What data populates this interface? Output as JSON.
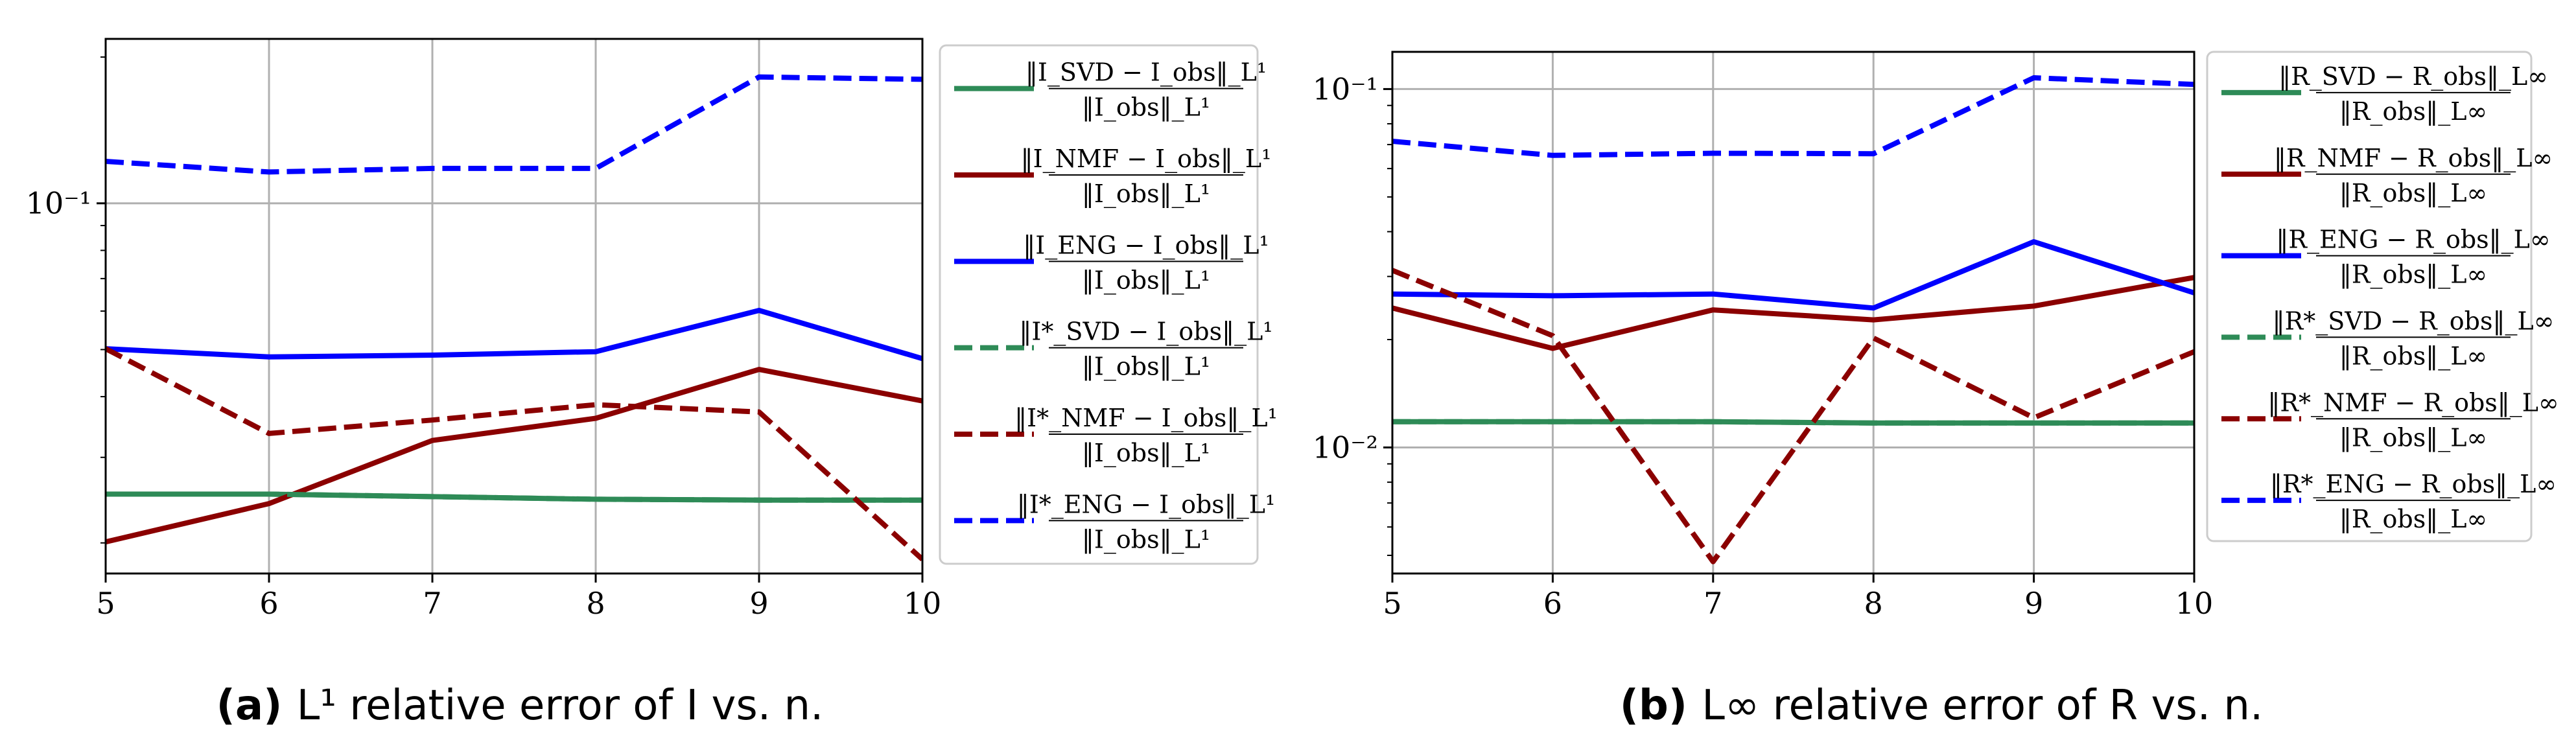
{
  "chart_data": [
    {
      "panel": "a",
      "type": "line",
      "caption": {
        "label": "(a)",
        "text": "L¹ relative error of I vs. n."
      },
      "x": [
        5,
        6,
        7,
        8,
        9,
        10
      ],
      "xticks": [
        "5",
        "6",
        "7",
        "8",
        "9",
        "10"
      ],
      "ytick_label": "10⁻¹",
      "yscale": "log",
      "ylim": [
        0.0173,
        0.218
      ],
      "series": [
        {
          "name": "‖I_SVD − I_obs‖_L¹ / ‖I_obs‖_L¹",
          "num": "‖I_SVD − I_obs‖_L¹",
          "den": "‖I_obs‖_L¹",
          "color": "#2e8b57",
          "dash": "solid",
          "values": [
            0.0252,
            0.0252,
            0.0249,
            0.0246,
            0.0245,
            0.0245
          ]
        },
        {
          "name": "‖I_NMF − I_obs‖_L¹ / ‖I_obs‖_L¹",
          "num": "‖I_NMF − I_obs‖_L¹",
          "den": "‖I_obs‖_L¹",
          "color": "#8b0000",
          "dash": "solid",
          "values": [
            0.0201,
            0.0241,
            0.0325,
            0.0361,
            0.0455,
            0.0392
          ]
        },
        {
          "name": "‖I_ENG − I_obs‖_L¹ / ‖I_obs‖_L¹",
          "num": "‖I_ENG − I_obs‖_L¹",
          "den": "‖I_obs‖_L¹",
          "color": "#0000ff",
          "dash": "solid",
          "values": [
            0.0502,
            0.0483,
            0.0487,
            0.0495,
            0.0602,
            0.0479
          ]
        },
        {
          "name": "‖I*_SVD − I_obs‖_L¹ / ‖I_obs‖_L¹",
          "num": "‖I*_SVD − I_obs‖_L¹",
          "den": "‖I_obs‖_L¹",
          "color": "#2e8b57",
          "dash": "dashed",
          "values": [
            0.0252,
            0.0252,
            0.0249,
            0.0246,
            0.0245,
            0.0245
          ]
        },
        {
          "name": "‖I*_NMF − I_obs‖_L¹ / ‖I_obs‖_L¹",
          "num": "‖I*_NMF − I_obs‖_L¹",
          "den": "‖I_obs‖_L¹",
          "color": "#8b0000",
          "dash": "dashed",
          "values": [
            0.0502,
            0.0336,
            0.0358,
            0.0385,
            0.0372,
            0.0185
          ]
        },
        {
          "name": "‖I*_ENG − I_obs‖_L¹ / ‖I_obs‖_L¹",
          "num": "‖I*_ENG − I_obs‖_L¹",
          "den": "‖I_obs‖_L¹",
          "color": "#0000ff",
          "dash": "dashed",
          "values": [
            0.122,
            0.116,
            0.118,
            0.118,
            0.182,
            0.18
          ]
        }
      ]
    },
    {
      "panel": "b",
      "type": "line",
      "caption": {
        "label": "(b)",
        "text": "L∞ relative error of R vs. n."
      },
      "x": [
        5,
        6,
        7,
        8,
        9,
        10
      ],
      "xticks": [
        "5",
        "6",
        "7",
        "8",
        "9",
        "10"
      ],
      "ytick_labels": [
        "10⁻¹",
        "10⁻²"
      ],
      "yscale": "log",
      "ylim": [
        0.00445,
        0.127
      ],
      "series": [
        {
          "name": "‖R_SVD − R_obs‖_L∞ / ‖R_obs‖_L∞",
          "num": "‖R_SVD − R_obs‖_L∞",
          "den": "‖R_obs‖_L∞",
          "color": "#2e8b57",
          "dash": "solid",
          "values": [
            0.0118,
            0.0118,
            0.0118,
            0.0117,
            0.0117,
            0.0117
          ]
        },
        {
          "name": "‖R_NMF − R_obs‖_L∞ / ‖R_obs‖_L∞",
          "num": "‖R_NMF − R_obs‖_L∞",
          "den": "‖R_obs‖_L∞",
          "color": "#8b0000",
          "dash": "solid",
          "values": [
            0.0245,
            0.0189,
            0.0242,
            0.0227,
            0.0248,
            0.0298
          ]
        },
        {
          "name": "‖R_ENG − R_obs‖_L∞ / ‖R_obs‖_L∞",
          "num": "‖R_ENG − R_obs‖_L∞",
          "den": "‖R_obs‖_L∞",
          "color": "#0000ff",
          "dash": "solid",
          "values": [
            0.0268,
            0.0265,
            0.0268,
            0.0245,
            0.0375,
            0.027
          ]
        },
        {
          "name": "‖R*_SVD − R_obs‖_L∞ / ‖R_obs‖_L∞",
          "num": "‖R*_SVD − R_obs‖_L∞",
          "den": "‖R_obs‖_L∞",
          "color": "#2e8b57",
          "dash": "dashed",
          "values": [
            0.0118,
            0.0118,
            0.0118,
            0.0117,
            0.0117,
            0.0117
          ]
        },
        {
          "name": "‖R*_NMF − R_obs‖_L∞ / ‖R_obs‖_L∞",
          "num": "‖R*_NMF − R_obs‖_L∞",
          "den": "‖R_obs‖_L∞",
          "color": "#8b0000",
          "dash": "dashed",
          "values": [
            0.0312,
            0.0205,
            0.0048,
            0.0202,
            0.0121,
            0.0185
          ]
        },
        {
          "name": "‖R*_ENG − R_obs‖_L∞ / ‖R_obs‖_L∞",
          "num": "‖R*_ENG − R_obs‖_L∞",
          "den": "‖R_obs‖_L∞",
          "color": "#0000ff",
          "dash": "dashed",
          "values": [
            0.0715,
            0.0653,
            0.0662,
            0.066,
            0.1075,
            0.103
          ]
        }
      ]
    }
  ]
}
